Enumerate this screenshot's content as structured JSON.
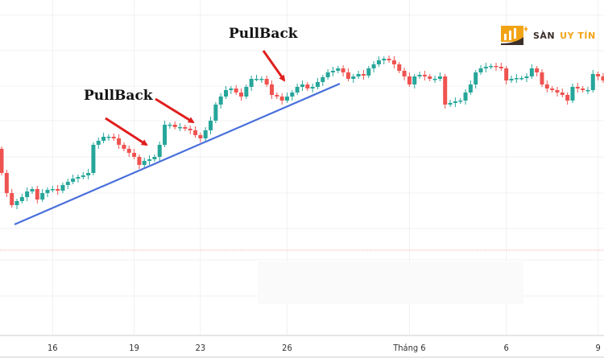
{
  "logo": {
    "text_part1": "SÀN",
    "text_part2": "UY TÍN",
    "color_brand": "#f2a417",
    "color_dark": "#3d2f2a"
  },
  "chart_data": {
    "type": "candlestick",
    "title": "",
    "xlabel": "",
    "ylabel": "",
    "grid": true,
    "colors": {
      "up": "#26a69a",
      "down": "#ef5350",
      "trendline": "#4a6fdc",
      "arrow": "#e01f1f"
    },
    "first_open": 115,
    "close": [
      85,
      60,
      45,
      50,
      55,
      62,
      65,
      52,
      60,
      64,
      65,
      63,
      70,
      74,
      78,
      80,
      82,
      85,
      120,
      125,
      130,
      130,
      128,
      120,
      115,
      110,
      105,
      95,
      100,
      102,
      105,
      120,
      145,
      145,
      142,
      142,
      140,
      138,
      132,
      128,
      138,
      150,
      170,
      180,
      188,
      190,
      185,
      180,
      192,
      202,
      202,
      202,
      195,
      182,
      180,
      175,
      180,
      185,
      192,
      195,
      190,
      192,
      198,
      204,
      210,
      212,
      215,
      210,
      202,
      205,
      208,
      206,
      215,
      220,
      225,
      227,
      225,
      220,
      212,
      205,
      195,
      205,
      207,
      205,
      202,
      202,
      205,
      170,
      172,
      174,
      175,
      185,
      195,
      210,
      215,
      217,
      218,
      217,
      215,
      200,
      202,
      203,
      203,
      205,
      215,
      210,
      195,
      190,
      188,
      185,
      182,
      175,
      192,
      190,
      188,
      188,
      208,
      205,
      200,
      200,
      204
    ],
    "x_ticks": [
      {
        "label": "16",
        "index": 10
      },
      {
        "label": "19",
        "index": 26
      },
      {
        "label": "23",
        "index": 39
      },
      {
        "label": "26",
        "index": 56
      },
      {
        "label": "Tháng 6",
        "index": 80
      },
      {
        "label": "6",
        "index": 99
      },
      {
        "label": "9",
        "index": 117
      }
    ],
    "annotations": [
      {
        "text": "PullBack"
      },
      {
        "text": "PullBack"
      }
    ]
  }
}
